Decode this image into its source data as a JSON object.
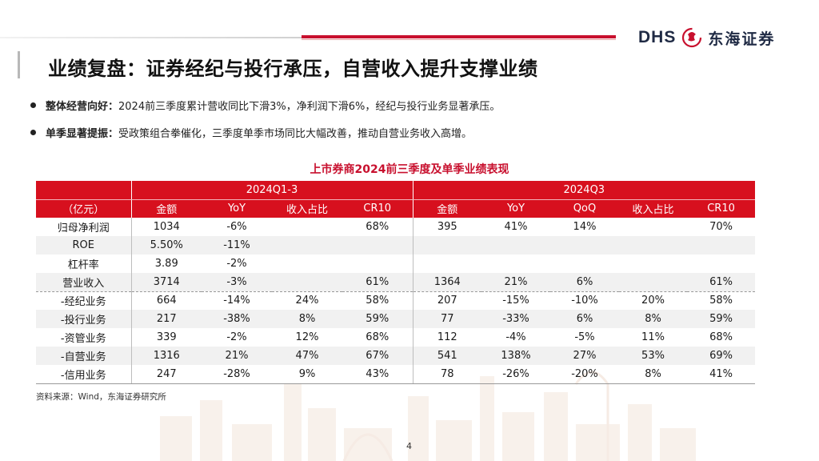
{
  "brand": {
    "logo_latin": "DHS",
    "logo_chinese": "东海证券",
    "logo_mark_icon": "dhs-dragon-mark-icon"
  },
  "title": "业绩复盘：证券经纪与投行承压，自营收入提升支撑业绩",
  "bullets": [
    {
      "label": "整体经营向好：",
      "text": "2024前三季度累计营收同比下滑3%，净利润下滑6%，经纪与投行业务显著承压。"
    },
    {
      "label": "单季显著提振：",
      "text": "受政策组合拳催化，三季度单季市场同比大幅改善，推动自营业务收入高增。"
    }
  ],
  "table": {
    "caption": "上市券商2024前三季度及单季业绩表现",
    "unit_label": "（亿元）",
    "group_headers": [
      "2024Q1-3",
      "2024Q3"
    ],
    "columns_q13": [
      "金额",
      "YoY",
      "收入占比",
      "CR10"
    ],
    "columns_q3": [
      "金额",
      "YoY",
      "QoQ",
      "收入占比",
      "CR10"
    ],
    "rows": [
      {
        "name": "归母净利润",
        "q13": [
          "1034",
          "-6%",
          "",
          "68%"
        ],
        "q3": [
          "395",
          "41%",
          "14%",
          "",
          "70%"
        ]
      },
      {
        "name": "ROE",
        "q13": [
          "5.50%",
          "-11%",
          "",
          ""
        ],
        "q3": [
          "",
          "",
          "",
          "",
          ""
        ]
      },
      {
        "name": "杠杆率",
        "q13": [
          "3.89",
          "-2%",
          "",
          ""
        ],
        "q3": [
          "",
          "",
          "",
          "",
          ""
        ]
      },
      {
        "name": "营业收入",
        "q13": [
          "3714",
          "-3%",
          "",
          "61%"
        ],
        "q3": [
          "1364",
          "21%",
          "6%",
          "",
          "61%"
        ]
      },
      {
        "name": "-经纪业务",
        "q13": [
          "664",
          "-14%",
          "24%",
          "58%"
        ],
        "q3": [
          "207",
          "-15%",
          "-10%",
          "20%",
          "58%"
        ]
      },
      {
        "name": "-投行业务",
        "q13": [
          "217",
          "-38%",
          "8%",
          "59%"
        ],
        "q3": [
          "77",
          "-33%",
          "6%",
          "8%",
          "59%"
        ]
      },
      {
        "name": "-资管业务",
        "q13": [
          "339",
          "-2%",
          "12%",
          "68%"
        ],
        "q3": [
          "112",
          "-4%",
          "-5%",
          "11%",
          "68%"
        ]
      },
      {
        "name": "-自营业务",
        "q13": [
          "1316",
          "21%",
          "47%",
          "67%"
        ],
        "q3": [
          "541",
          "138%",
          "27%",
          "53%",
          "69%"
        ]
      },
      {
        "name": "-信用业务",
        "q13": [
          "247",
          "-28%",
          "9%",
          "43%"
        ],
        "q3": [
          "78",
          "-26%",
          "-20%",
          "8%",
          "41%"
        ]
      }
    ]
  },
  "source": "资料来源：Wind，东海证券研究所",
  "page_number": "4",
  "colors": {
    "accent_red": "#d7101e",
    "caption_red": "#c8102e",
    "navy": "#1f2a44",
    "row_alt": "#f1f1f1"
  }
}
